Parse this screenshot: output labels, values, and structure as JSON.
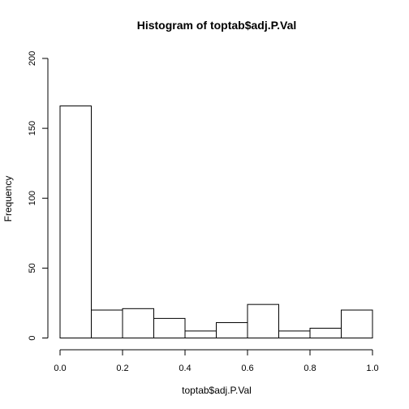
{
  "chart_data": {
    "type": "bar",
    "subtype": "histogram",
    "title": "Histogram of toptab$adj.P.Val",
    "xlabel": "toptab$adj.P.Val",
    "ylabel": "Frequency",
    "bins": [
      {
        "from": 0.0,
        "to": 0.1,
        "count": 166
      },
      {
        "from": 0.1,
        "to": 0.2,
        "count": 20
      },
      {
        "from": 0.2,
        "to": 0.3,
        "count": 21
      },
      {
        "from": 0.3,
        "to": 0.4,
        "count": 14
      },
      {
        "from": 0.4,
        "to": 0.5,
        "count": 5
      },
      {
        "from": 0.5,
        "to": 0.6,
        "count": 11
      },
      {
        "from": 0.6,
        "to": 0.7,
        "count": 24
      },
      {
        "from": 0.7,
        "to": 0.8,
        "count": 5
      },
      {
        "from": 0.8,
        "to": 0.9,
        "count": 7
      },
      {
        "from": 0.9,
        "to": 1.0,
        "count": 20
      }
    ],
    "xlim": [
      0,
      1
    ],
    "ylim": [
      0,
      200
    ],
    "xticks": [
      0.0,
      0.2,
      0.4,
      0.6,
      0.8,
      1.0
    ],
    "xtick_labels": [
      "0.0",
      "0.2",
      "0.4",
      "0.6",
      "0.8",
      "1.0"
    ],
    "yticks": [
      0,
      50,
      100,
      150,
      200
    ],
    "ytick_labels": [
      "0",
      "50",
      "100",
      "150",
      "200"
    ],
    "grid": false,
    "bar_fill": "#ffffff",
    "bar_stroke": "#000000"
  }
}
